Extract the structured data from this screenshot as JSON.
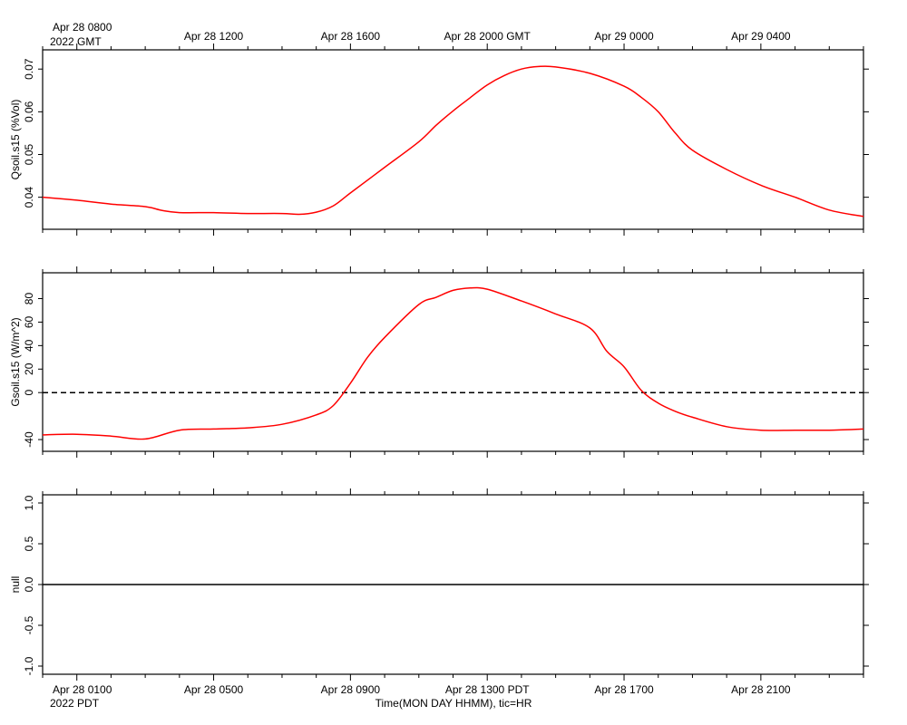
{
  "colors": {
    "series": "#ff0000",
    "axis": "#000000",
    "zero_line": "#000000",
    "background": "#ffffff"
  },
  "top_axis": {
    "first_label": "Apr 28 0800",
    "zone_label": "2022 GMT",
    "tick_labels": [
      {
        "t": 4,
        "text": "Apr 28 1200"
      },
      {
        "t": 8,
        "text": "Apr 28 1600"
      },
      {
        "t": 12,
        "text": "Apr 28 2000 GMT"
      },
      {
        "t": 16,
        "text": "Apr 29 0000"
      },
      {
        "t": 20,
        "text": "Apr 29 0400"
      }
    ]
  },
  "bottom_axis": {
    "first_label": "Apr 28 0100",
    "zone_label": "2022 PDT",
    "title": "Time(MON DAY HHMM), tic=HR",
    "tick_labels": [
      {
        "t": 4,
        "text": "Apr 28 0500"
      },
      {
        "t": 8,
        "text": "Apr 28 0900"
      },
      {
        "t": 12,
        "text": "Apr 28 1300 PDT"
      },
      {
        "t": 16,
        "text": "Apr 28 1700"
      },
      {
        "t": 20,
        "text": "Apr 28 2100"
      }
    ]
  },
  "chart_data": [
    {
      "type": "line",
      "ylabel": "Qsoil.s15 (%Vol)",
      "xlim": [
        -1,
        23
      ],
      "ylim": [
        0.0325,
        0.0745
      ],
      "yticks": [
        0.04,
        0.05,
        0.06,
        0.07
      ],
      "ytick_labels": [
        "0.04",
        "0.05",
        "0.06",
        "0.07"
      ],
      "series": [
        {
          "x": [
            -1,
            0,
            1,
            2,
            2.5,
            3,
            4,
            5,
            6,
            6.5,
            7,
            7.5,
            8,
            9,
            10,
            10.5,
            11,
            11.5,
            12,
            12.5,
            13,
            13.5,
            14,
            15,
            16,
            16.5,
            17,
            17.5,
            18,
            19,
            20,
            21,
            22,
            23
          ],
          "y": [
            0.04,
            0.0393,
            0.0384,
            0.0378,
            0.0369,
            0.0364,
            0.0364,
            0.0362,
            0.0362,
            0.036,
            0.0365,
            0.038,
            0.041,
            0.047,
            0.053,
            0.0568,
            0.0602,
            0.0633,
            0.0663,
            0.0685,
            0.07,
            0.0706,
            0.0705,
            0.069,
            0.066,
            0.0634,
            0.06,
            0.055,
            0.051,
            0.0465,
            0.0428,
            0.04,
            0.037,
            0.0355
          ]
        }
      ]
    },
    {
      "type": "line",
      "ylabel": "Gsoil.s15 (W/m^2)",
      "xlim": [
        -1,
        23
      ],
      "ylim": [
        -50,
        102
      ],
      "yticks": [
        -40,
        0,
        20,
        40,
        60,
        80
      ],
      "ytick_labels": [
        "-40",
        "0",
        "20",
        "40",
        "60",
        "80"
      ],
      "zero_line": 0,
      "series": [
        {
          "x": [
            -1,
            0,
            1,
            2,
            3,
            4,
            5,
            6,
            7,
            7.5,
            8,
            8.5,
            9,
            10,
            10.5,
            11,
            11.5,
            12,
            13,
            14,
            15,
            15.5,
            16,
            16.5,
            17,
            17.5,
            18,
            19,
            20,
            21,
            22,
            23
          ],
          "y": [
            -36,
            -35.5,
            -37,
            -39.5,
            -32,
            -31,
            -30,
            -27,
            -19,
            -11,
            8,
            30,
            47,
            75,
            81,
            87,
            89,
            88,
            78,
            67,
            55,
            35,
            22,
            2,
            -9,
            -16,
            -21,
            -29,
            -32,
            -32,
            -32,
            -31
          ]
        }
      ]
    },
    {
      "type": "line",
      "ylabel": "null",
      "xlim": [
        -1,
        23
      ],
      "ylim": [
        -1.1,
        1.1
      ],
      "yticks": [
        -1,
        -0.5,
        0,
        0.5,
        1
      ],
      "ytick_labels": [
        "-1.0",
        "-0.5",
        "0.0",
        "0.5",
        "1.0"
      ],
      "series": [
        {
          "x": [
            -1,
            23
          ],
          "y": [
            0,
            0
          ],
          "color": "#000000"
        }
      ]
    }
  ]
}
